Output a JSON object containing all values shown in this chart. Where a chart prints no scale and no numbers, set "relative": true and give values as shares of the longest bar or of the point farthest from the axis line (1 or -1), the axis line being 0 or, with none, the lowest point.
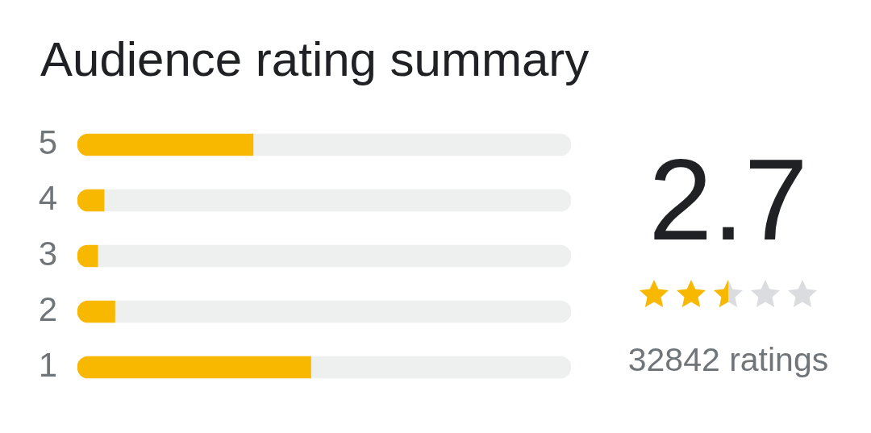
{
  "chart_data": {
    "type": "bar",
    "orientation": "horizontal",
    "relative": true,
    "stacked": true,
    "title": "Audience rating summary",
    "categories": [
      "5",
      "4",
      "3",
      "2",
      "1"
    ],
    "series": [
      {
        "color": "#f9b800",
        "values": [
          0.356,
          0.054,
          0.041,
          0.076,
          0.473
        ]
      },
      {
        "color": "#eef0ef",
        "values": [
          0.644,
          0.946,
          0.959,
          0.924,
          0.527
        ]
      }
    ],
    "annotations": [
      "2.7",
      "32842 ratings"
    ]
  }
}
